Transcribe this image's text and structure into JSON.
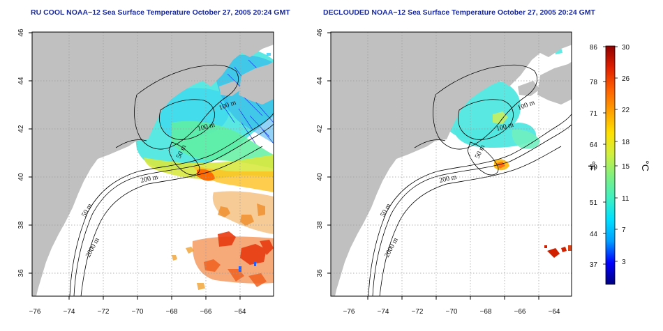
{
  "panels": [
    {
      "id": "left",
      "title": "RU COOL NOAA−12 Sea Surface Temperature October 27, 2005 20:24 GMT",
      "contours": [
        "100 m",
        "100 m",
        "50 m",
        "200 m",
        "50 m",
        "2000 m"
      ]
    },
    {
      "id": "right",
      "title": "DECLOUDED NOAA−12 Sea Surface Temperature October 27, 2005 20:24 GMT",
      "contours": [
        "100 m",
        "100 m",
        "50 m",
        "200 m",
        "50 m",
        "2000 m"
      ]
    }
  ],
  "axes": {
    "x_ticks": [
      "−76",
      "−74",
      "−72",
      "−70",
      "−68",
      "−66",
      "−64"
    ],
    "y_ticks": [
      "46",
      "44",
      "42",
      "40",
      "38",
      "36"
    ],
    "lon_range": [
      -77,
      -63
    ],
    "lat_range": [
      35,
      46
    ],
    "grid": "dotted"
  },
  "colorbar": {
    "fahrenheit_label": "°F",
    "celsius_label": "°C",
    "fahrenheit_ticks": [
      "86",
      "78",
      "71",
      "64",
      "59",
      "51",
      "44",
      "37"
    ],
    "celsius_ticks": [
      "30",
      "26",
      "22",
      "18",
      "15",
      "11",
      "7",
      "3"
    ],
    "stops": [
      "#000080",
      "#0000ff",
      "#00a0ff",
      "#00e0ff",
      "#40f0c0",
      "#80f080",
      "#d0f040",
      "#ffe000",
      "#ffa000",
      "#ff6000",
      "#e02000",
      "#900000"
    ]
  },
  "colors": {
    "land": "#c0c0c0",
    "ocean_bg": "#ffffff",
    "frame": "#000000"
  }
}
